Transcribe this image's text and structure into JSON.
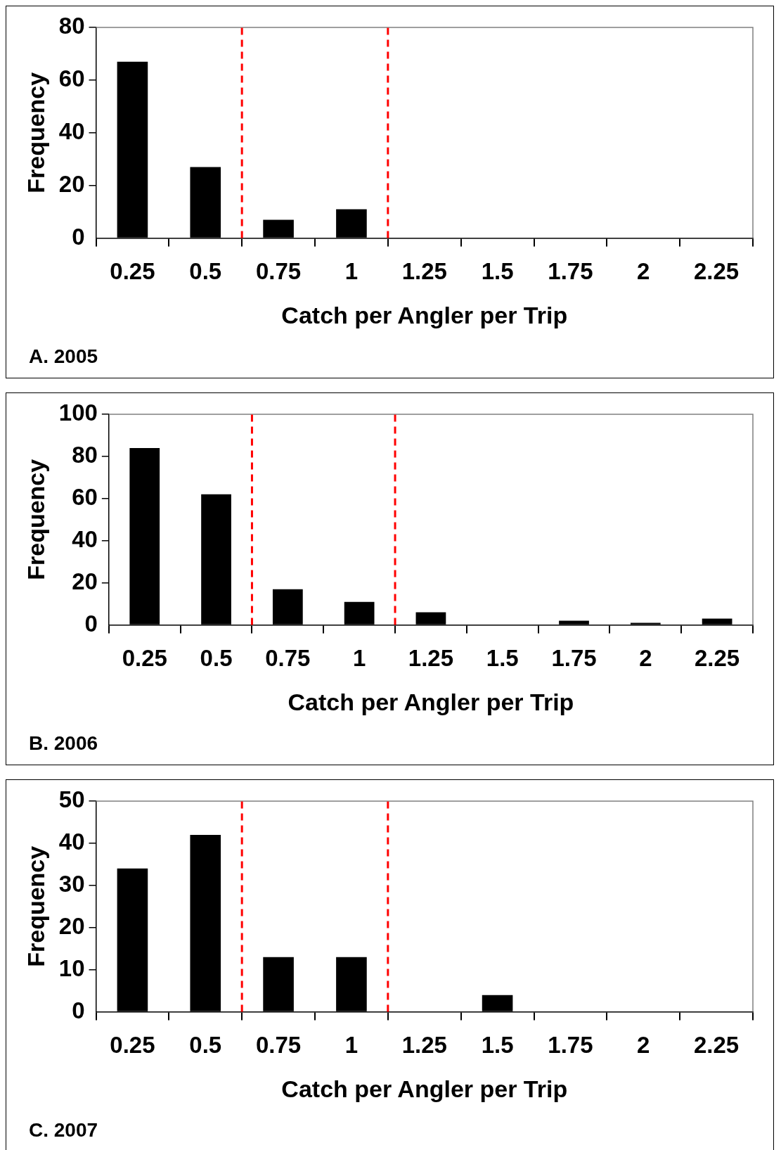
{
  "chart_data": [
    {
      "type": "bar",
      "xlabel": "Catch per Angler per Trip",
      "ylabel": "Frequency",
      "x": [
        0.25,
        0.5,
        0.75,
        1,
        1.25,
        1.5,
        1.75,
        2,
        2.25
      ],
      "values": [
        67,
        27,
        7,
        11,
        0,
        0,
        0,
        0,
        0
      ],
      "color": "#000000",
      "xlim": [
        0.125,
        2.375
      ],
      "xticks": [
        {
          "value": 0.125,
          "label": null
        },
        0.25,
        {
          "value": 0.375,
          "label": null
        },
        0.5,
        {
          "value": 0.625,
          "label": null
        },
        0.75,
        {
          "value": 0.875,
          "label": null
        },
        1,
        {
          "value": 1.125,
          "label": null
        },
        1.25,
        {
          "value": 1.375,
          "label": null
        },
        1.5,
        {
          "value": 1.625,
          "label": null
        },
        1.75,
        {
          "value": 1.875,
          "label": null
        },
        2,
        {
          "value": 2.125,
          "label": null
        },
        2.25,
        {
          "value": 2.375,
          "label": null
        }
      ],
      "ylim": [
        0,
        80
      ],
      "yticks": [
        0,
        20,
        40,
        60,
        80
      ],
      "ref_lines": [
        {
          "axis": "x",
          "value": 0.625,
          "color": "#ff0000",
          "line_style": "dashed"
        },
        {
          "axis": "x",
          "value": 1.125,
          "color": "#ff0000",
          "line_style": "dashed"
        }
      ],
      "annotations": [
        "A. 2005"
      ]
    },
    {
      "type": "bar",
      "xlabel": "Catch per Angler per Trip",
      "ylabel": "Frequency",
      "x": [
        0.25,
        0.5,
        0.75,
        1,
        1.25,
        1.5,
        1.75,
        2,
        2.25
      ],
      "values": [
        84,
        62,
        17,
        11,
        6,
        0,
        2,
        1,
        3
      ],
      "color": "#000000",
      "xlim": [
        0.125,
        2.375
      ],
      "xticks": [
        {
          "value": 0.125,
          "label": null
        },
        0.25,
        {
          "value": 0.375,
          "label": null
        },
        0.5,
        {
          "value": 0.625,
          "label": null
        },
        0.75,
        {
          "value": 0.875,
          "label": null
        },
        1,
        {
          "value": 1.125,
          "label": null
        },
        1.25,
        {
          "value": 1.375,
          "label": null
        },
        1.5,
        {
          "value": 1.625,
          "label": null
        },
        1.75,
        {
          "value": 1.875,
          "label": null
        },
        2,
        {
          "value": 2.125,
          "label": null
        },
        2.25,
        {
          "value": 2.375,
          "label": null
        }
      ],
      "ylim": [
        0,
        100
      ],
      "yticks": [
        0,
        20,
        40,
        60,
        80,
        100
      ],
      "ref_lines": [
        {
          "axis": "x",
          "value": 0.625,
          "color": "#ff0000",
          "line_style": "dashed"
        },
        {
          "axis": "x",
          "value": 1.125,
          "color": "#ff0000",
          "line_style": "dashed"
        }
      ],
      "annotations": [
        "B. 2006"
      ]
    },
    {
      "type": "bar",
      "xlabel": "Catch per Angler per Trip",
      "ylabel": "Frequency",
      "x": [
        0.25,
        0.5,
        0.75,
        1,
        1.25,
        1.5,
        1.75,
        2,
        2.25
      ],
      "values": [
        34,
        42,
        13,
        13,
        0,
        4,
        0,
        0,
        0
      ],
      "color": "#000000",
      "xlim": [
        0.125,
        2.375
      ],
      "xticks": [
        {
          "value": 0.125,
          "label": null
        },
        0.25,
        {
          "value": 0.375,
          "label": null
        },
        0.5,
        {
          "value": 0.625,
          "label": null
        },
        0.75,
        {
          "value": 0.875,
          "label": null
        },
        1,
        {
          "value": 1.125,
          "label": null
        },
        1.25,
        {
          "value": 1.375,
          "label": null
        },
        1.5,
        {
          "value": 1.625,
          "label": null
        },
        1.75,
        {
          "value": 1.875,
          "label": null
        },
        2,
        {
          "value": 2.125,
          "label": null
        },
        2.25,
        {
          "value": 2.375,
          "label": null
        }
      ],
      "ylim": [
        0,
        50
      ],
      "yticks": [
        0,
        10,
        20,
        30,
        40,
        50
      ],
      "ref_lines": [
        {
          "axis": "x",
          "value": 0.625,
          "color": "#ff0000",
          "line_style": "dashed"
        },
        {
          "axis": "x",
          "value": 1.125,
          "color": "#ff0000",
          "line_style": "dashed"
        }
      ],
      "annotations": [
        "C. 2007"
      ]
    }
  ]
}
